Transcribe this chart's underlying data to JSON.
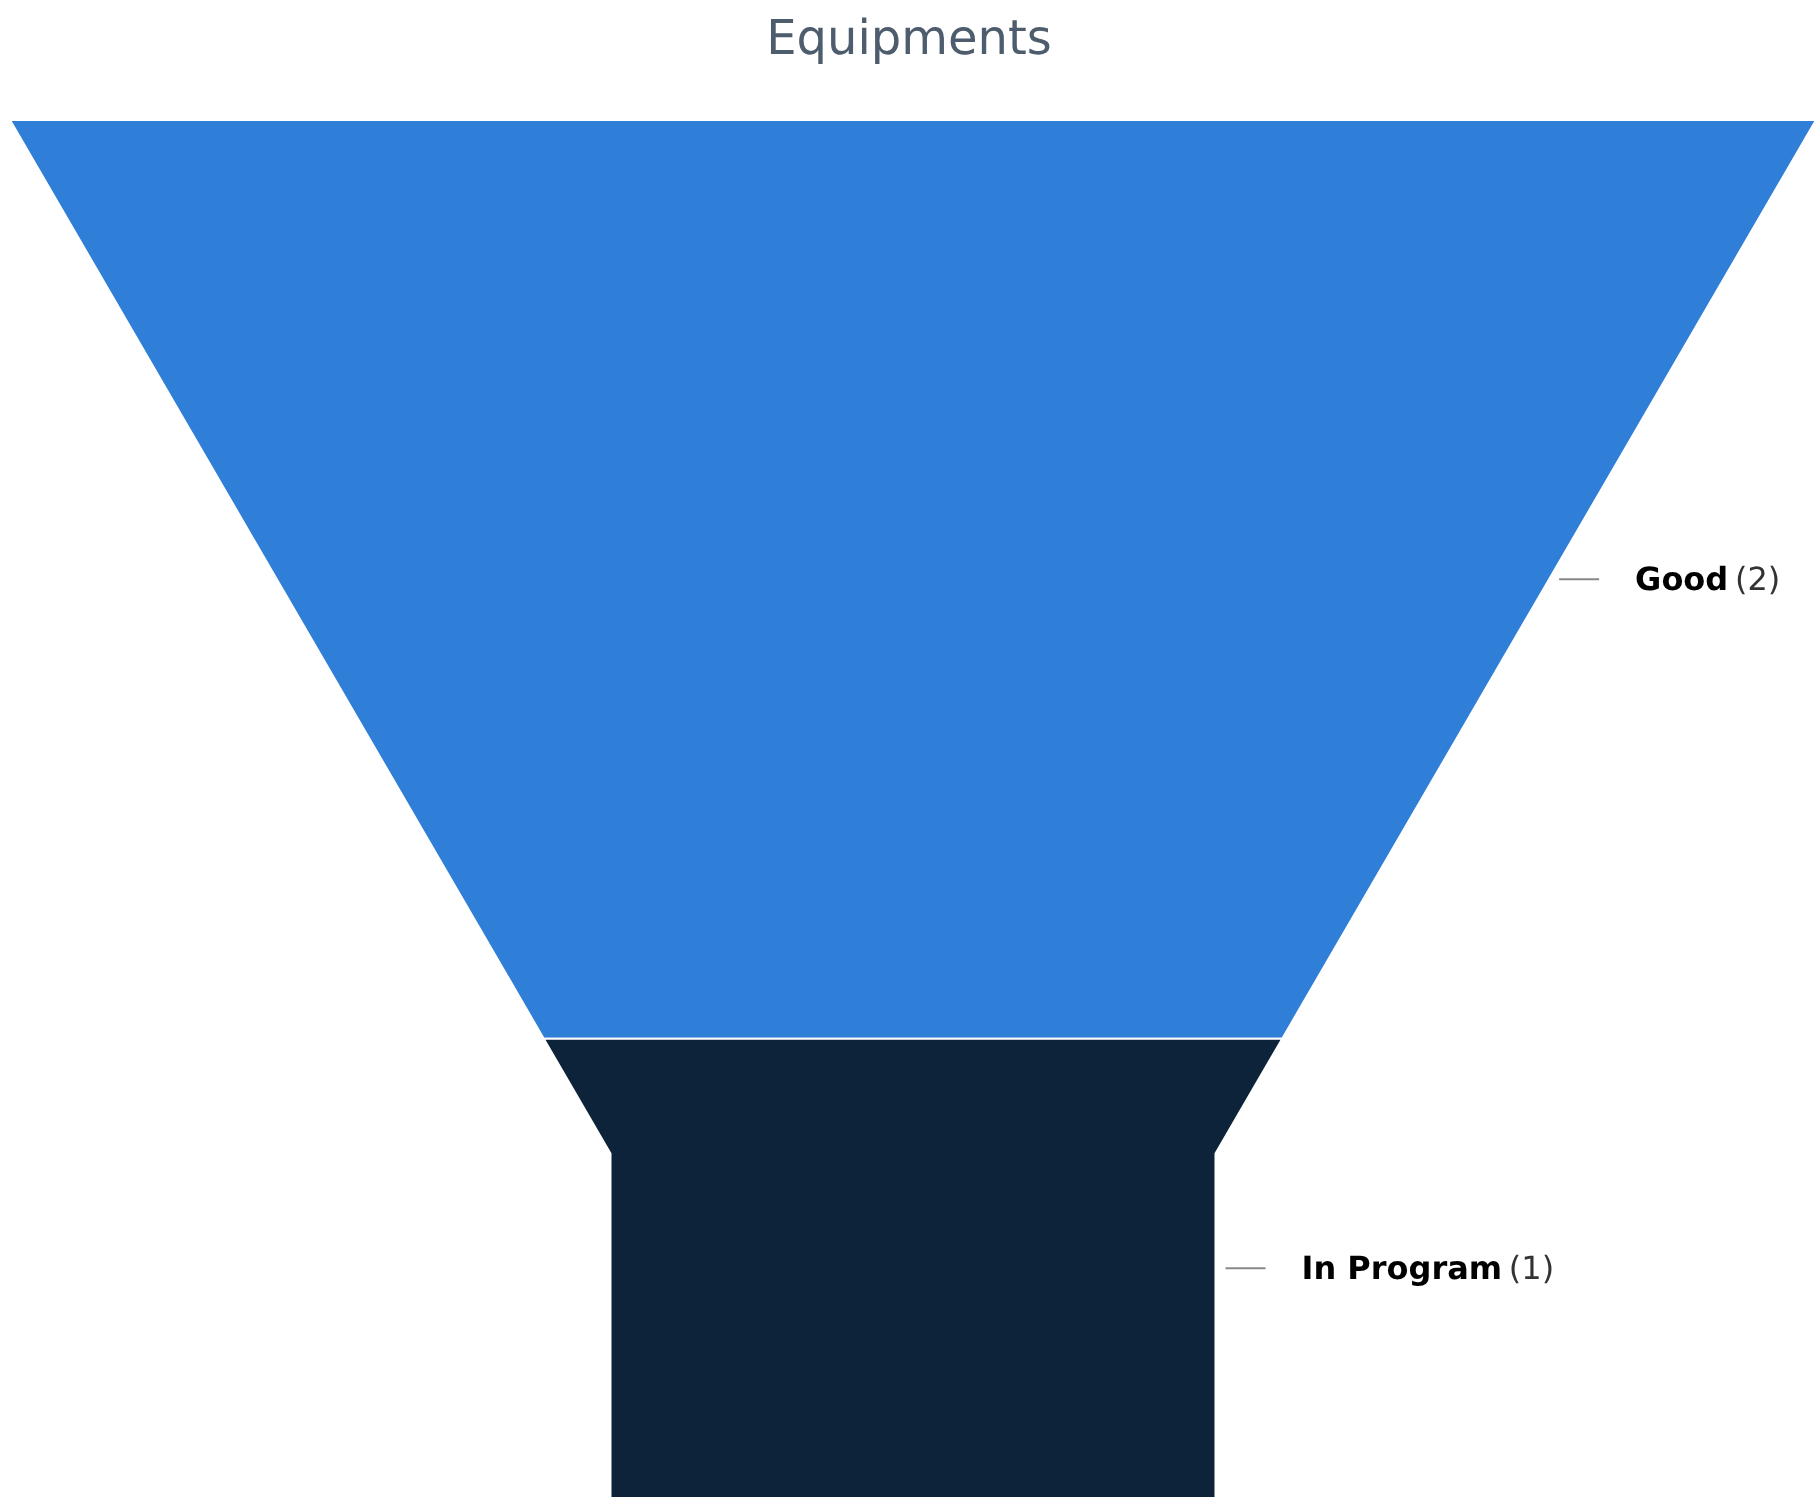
{
  "chart_data": {
    "type": "other",
    "title": "Equipments",
    "categories": [
      "Good",
      "In Program"
    ],
    "values": [
      2,
      1
    ],
    "colors": [
      "#2f7ed8",
      "#0d233a"
    ],
    "value_labels": [
      "(2)",
      "(1)"
    ]
  }
}
